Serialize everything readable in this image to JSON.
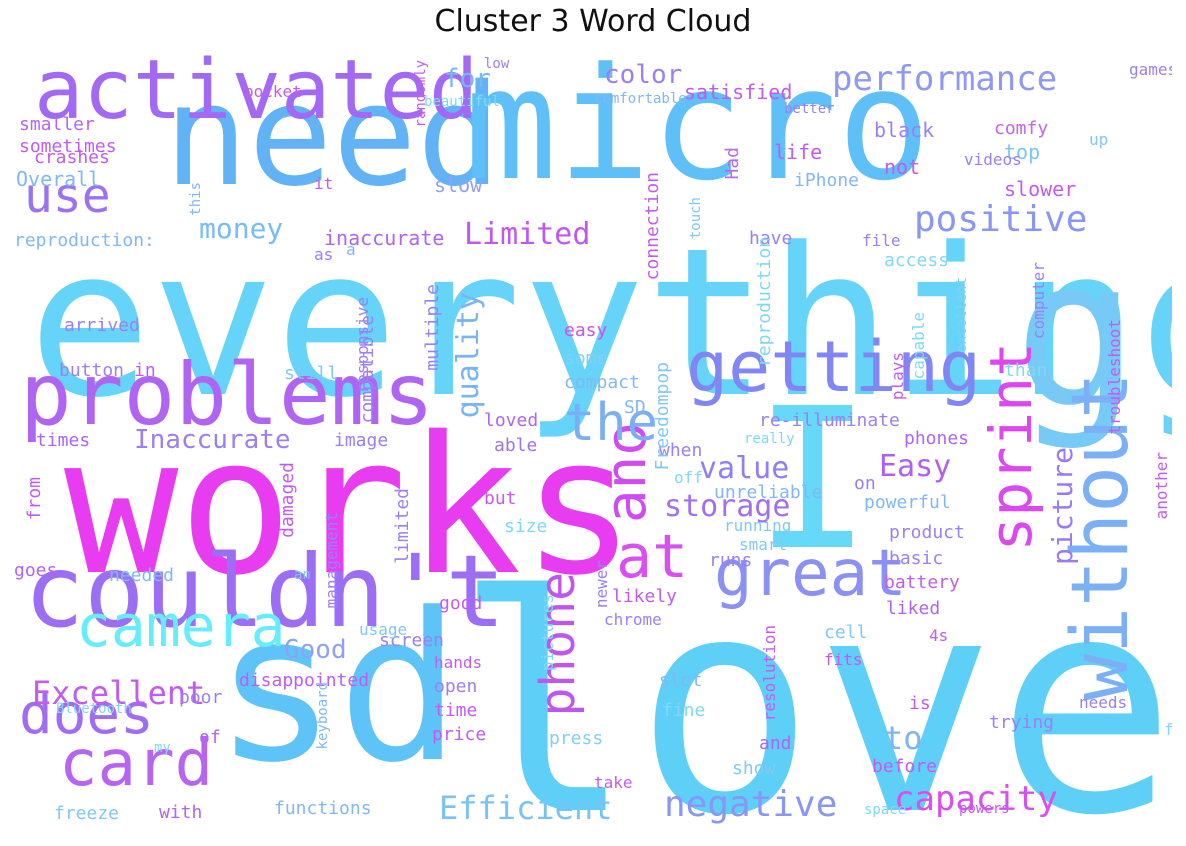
{
  "title": "Cluster 3 Word Cloud",
  "words": [
    {
      "text": "love",
      "color": "#5ed0f8",
      "orientation": "horizontal"
    },
    {
      "text": "works",
      "color": "#e83cf0",
      "orientation": "horizontal"
    },
    {
      "text": "everything",
      "color": "#66d4f8",
      "orientation": "horizontal"
    },
    {
      "text": "need",
      "color": "#62b2f6",
      "orientation": "horizontal"
    },
    {
      "text": "micro",
      "color": "#5ec0f6",
      "orientation": "horizontal"
    },
    {
      "text": "sd",
      "color": "#5ec4f8",
      "orientation": "horizontal"
    },
    {
      "text": "I",
      "color": "#66d8f8",
      "orientation": "horizontal"
    },
    {
      "text": "g",
      "color": "#78caf6",
      "orientation": "horizontal"
    },
    {
      "text": "couldn't",
      "color": "#9b6ef4",
      "orientation": "horizontal"
    },
    {
      "text": "problems",
      "color": "#b064f2",
      "orientation": "horizontal"
    },
    {
      "text": "activated",
      "color": "#a26af4",
      "orientation": "horizontal"
    },
    {
      "text": "without",
      "color": "#7cb0f6",
      "orientation": "vertical"
    },
    {
      "text": "getting",
      "color": "#8086f4",
      "orientation": "horizontal"
    },
    {
      "text": "sprint",
      "color": "#dc48f0",
      "orientation": "vertical"
    },
    {
      "text": "card",
      "color": "#b864f2",
      "orientation": "horizontal"
    },
    {
      "text": "does",
      "color": "#a06cf4",
      "orientation": "horizontal"
    },
    {
      "text": "great",
      "color": "#8a90f4",
      "orientation": "horizontal"
    },
    {
      "text": "at",
      "color": "#d850f0",
      "orientation": "horizontal"
    },
    {
      "text": "ano",
      "color": "#d04cf0",
      "orientation": "vertical"
    },
    {
      "text": "phone",
      "color": "#c056f0",
      "orientation": "vertical"
    },
    {
      "text": "camera",
      "color": "#66ecfa",
      "orientation": "horizontal"
    },
    {
      "text": "the",
      "color": "#7aaef6",
      "orientation": "horizontal"
    },
    {
      "text": "use",
      "color": "#9c72f4",
      "orientation": "horizontal"
    },
    {
      "text": "performance",
      "color": "#9098f4",
      "orientation": "horizontal"
    },
    {
      "text": "positive",
      "color": "#8a96f4",
      "orientation": "horizontal"
    },
    {
      "text": "negative",
      "color": "#8a96f4",
      "orientation": "horizontal"
    },
    {
      "text": "capacity",
      "color": "#d84ef0",
      "orientation": "horizontal"
    },
    {
      "text": "Efficient",
      "color": "#78c2f6",
      "orientation": "horizontal"
    },
    {
      "text": "Excellent",
      "color": "#c25cf0",
      "orientation": "horizontal"
    },
    {
      "text": "storage",
      "color": "#a070f2",
      "orientation": "horizontal"
    },
    {
      "text": "value",
      "color": "#8e80f4",
      "orientation": "horizontal"
    },
    {
      "text": "Easy",
      "color": "#b060f0",
      "orientation": "horizontal"
    },
    {
      "text": "quality",
      "color": "#78b4f6",
      "orientation": "vertical"
    },
    {
      "text": "picture",
      "color": "#9a7af4",
      "orientation": "vertical"
    },
    {
      "text": "Limited",
      "color": "#c058f0",
      "orientation": "horizontal"
    },
    {
      "text": "money",
      "color": "#76bcf6",
      "orientation": "horizontal"
    },
    {
      "text": "Inaccurate",
      "color": "#9a80f4",
      "orientation": "horizontal"
    },
    {
      "text": "Good",
      "color": "#90a0f4",
      "orientation": "horizontal"
    },
    {
      "text": "color",
      "color": "#9a80f4",
      "orientation": "horizontal"
    },
    {
      "text": "for",
      "color": "#78b8f6",
      "orientation": "horizontal"
    },
    {
      "text": "to",
      "color": "#80b4f6",
      "orientation": "horizontal"
    },
    {
      "text": "satisfied",
      "color": "#c05cf0",
      "orientation": "horizontal"
    },
    {
      "text": "inaccurate",
      "color": "#b064f2",
      "orientation": "horizontal"
    },
    {
      "text": "life",
      "color": "#c25cf0",
      "orientation": "horizontal"
    },
    {
      "text": "Had",
      "color": "#b868f0",
      "orientation": "vertical"
    },
    {
      "text": "black",
      "color": "#9a80f4",
      "orientation": "horizontal"
    },
    {
      "text": "comfy",
      "color": "#c860f0",
      "orientation": "horizontal"
    },
    {
      "text": "top",
      "color": "#76c8f6",
      "orientation": "horizontal"
    },
    {
      "text": "not",
      "color": "#c25cf0",
      "orientation": "horizontal"
    },
    {
      "text": "slower",
      "color": "#c25cf0",
      "orientation": "horizontal"
    },
    {
      "text": "slow",
      "color": "#90a0f4",
      "orientation": "horizontal"
    },
    {
      "text": "Overall",
      "color": "#80b8f6",
      "orientation": "horizontal"
    },
    {
      "text": "sometimes",
      "color": "#c25cf0",
      "orientation": "horizontal"
    },
    {
      "text": "smaller",
      "color": "#b864f2",
      "orientation": "horizontal"
    },
    {
      "text": "crashes",
      "color": "#c25cf0",
      "orientation": "horizontal"
    },
    {
      "text": "reproduction:",
      "color": "#80b8f6",
      "orientation": "horizontal"
    },
    {
      "text": "arrived",
      "color": "#9a80f4",
      "orientation": "horizontal"
    },
    {
      "text": "button",
      "color": "#9a80f4",
      "orientation": "horizontal"
    },
    {
      "text": "in",
      "color": "#c25cf0",
      "orientation": "horizontal"
    },
    {
      "text": "times",
      "color": "#b064f2",
      "orientation": "horizontal"
    },
    {
      "text": "still",
      "color": "#80c8f6",
      "orientation": "horizontal"
    },
    {
      "text": "image",
      "color": "#9a80f4",
      "orientation": "horizontal"
    },
    {
      "text": "easy",
      "color": "#d050f0",
      "orientation": "horizontal"
    },
    {
      "text": "some",
      "color": "#80d0f6",
      "orientation": "horizontal"
    },
    {
      "text": "compact",
      "color": "#80b8f6",
      "orientation": "horizontal"
    },
    {
      "text": "SD",
      "color": "#80b8f6",
      "orientation": "horizontal"
    },
    {
      "text": "loved",
      "color": "#b064f2",
      "orientation": "horizontal"
    },
    {
      "text": "able",
      "color": "#a070f2",
      "orientation": "horizontal"
    },
    {
      "text": "re-illuminate",
      "color": "#9a80f4",
      "orientation": "horizontal"
    },
    {
      "text": "really",
      "color": "#80d8f6",
      "orientation": "horizontal"
    },
    {
      "text": "when",
      "color": "#9a80f4",
      "orientation": "horizontal"
    },
    {
      "text": "phones",
      "color": "#b064f2",
      "orientation": "horizontal"
    },
    {
      "text": "off",
      "color": "#80d8f6",
      "orientation": "horizontal"
    },
    {
      "text": "on",
      "color": "#9a80f4",
      "orientation": "horizontal"
    },
    {
      "text": "unreliable",
      "color": "#80b8f6",
      "orientation": "horizontal"
    },
    {
      "text": "powerful",
      "color": "#80b8f6",
      "orientation": "horizontal"
    },
    {
      "text": "product",
      "color": "#9a80f4",
      "orientation": "horizontal"
    },
    {
      "text": "basic",
      "color": "#9a80f4",
      "orientation": "horizontal"
    },
    {
      "text": "battery",
      "color": "#c25cf0",
      "orientation": "horizontal"
    },
    {
      "text": "liked",
      "color": "#b064f2",
      "orientation": "horizontal"
    },
    {
      "text": "4s",
      "color": "#c25cf0",
      "orientation": "horizontal"
    },
    {
      "text": "cell",
      "color": "#80c8f6",
      "orientation": "horizontal"
    },
    {
      "text": "fits",
      "color": "#d050f0",
      "orientation": "horizontal"
    },
    {
      "text": "slot",
      "color": "#80b8f6",
      "orientation": "horizontal"
    },
    {
      "text": "fine",
      "color": "#80d8f6",
      "orientation": "horizontal"
    },
    {
      "text": "is",
      "color": "#c25cf0",
      "orientation": "horizontal"
    },
    {
      "text": "trying",
      "color": "#9a80f4",
      "orientation": "horizontal"
    },
    {
      "text": "needs",
      "color": "#9a80f4",
      "orientation": "horizontal"
    },
    {
      "text": "and",
      "color": "#b064f2",
      "orientation": "horizontal"
    },
    {
      "text": "show",
      "color": "#80c8f6",
      "orientation": "horizontal"
    },
    {
      "text": "before",
      "color": "#c25cf0",
      "orientation": "horizontal"
    },
    {
      "text": "space",
      "color": "#80d8f6",
      "orientation": "horizontal"
    },
    {
      "text": "powers",
      "color": "#c25cf0",
      "orientation": "horizontal"
    },
    {
      "text": "take",
      "color": "#c25cf0",
      "orientation": "horizontal"
    },
    {
      "text": "functions",
      "color": "#80b8f6",
      "orientation": "horizontal"
    },
    {
      "text": "with",
      "color": "#b064f2",
      "orientation": "horizontal"
    },
    {
      "text": "freeze",
      "color": "#80c8f6",
      "orientation": "horizontal"
    },
    {
      "text": "of",
      "color": "#b064f2",
      "orientation": "horizontal"
    },
    {
      "text": "poor",
      "color": "#9a80f4",
      "orientation": "horizontal"
    },
    {
      "text": "Bluetooth",
      "color": "#80d8f6",
      "orientation": "horizontal"
    },
    {
      "text": "my",
      "color": "#80d8f6",
      "orientation": "horizontal"
    },
    {
      "text": "disappointed",
      "color": "#c25cf0",
      "orientation": "horizontal"
    },
    {
      "text": "hands",
      "color": "#c25cf0",
      "orientation": "horizontal"
    },
    {
      "text": "open",
      "color": "#9a80f4",
      "orientation": "horizontal"
    },
    {
      "text": "time",
      "color": "#c25cf0",
      "orientation": "horizontal"
    },
    {
      "text": "price",
      "color": "#c25cf0",
      "orientation": "horizontal"
    },
    {
      "text": "press",
      "color": "#80d0f6",
      "orientation": "horizontal"
    },
    {
      "text": "good",
      "color": "#c25cf0",
      "orientation": "horizontal"
    },
    {
      "text": "likely",
      "color": "#c25cf0",
      "orientation": "horizontal"
    },
    {
      "text": "chrome",
      "color": "#9a80f4",
      "orientation": "horizontal"
    },
    {
      "text": "runs",
      "color": "#9a80f4",
      "orientation": "horizontal"
    },
    {
      "text": "smart",
      "color": "#80c8f6",
      "orientation": "horizontal"
    },
    {
      "text": "running",
      "color": "#80c8f6",
      "orientation": "horizontal"
    },
    {
      "text": "size",
      "color": "#80d8f6",
      "orientation": "horizontal"
    },
    {
      "text": "but",
      "color": "#c25cf0",
      "orientation": "horizontal"
    },
    {
      "text": "screen",
      "color": "#9a80f4",
      "orientation": "horizontal"
    },
    {
      "text": "usage",
      "color": "#80c8f6",
      "orientation": "horizontal"
    },
    {
      "text": "an",
      "color": "#80c8f6",
      "orientation": "horizontal"
    },
    {
      "text": "needed",
      "color": "#80b8f6",
      "orientation": "horizontal"
    },
    {
      "text": "goes",
      "color": "#b064f2",
      "orientation": "horizontal"
    },
    {
      "text": "from",
      "color": "#c25cf0",
      "orientation": "vertical"
    },
    {
      "text": "damaged",
      "color": "#c25cf0",
      "orientation": "vertical"
    },
    {
      "text": "management",
      "color": "#9a80f4",
      "orientation": "vertical"
    },
    {
      "text": "limited",
      "color": "#9a80f4",
      "orientation": "vertical"
    },
    {
      "text": "keyboard",
      "color": "#80b8f6",
      "orientation": "vertical"
    },
    {
      "text": "pictures",
      "color": "#80d8f6",
      "orientation": "vertical"
    },
    {
      "text": "newer",
      "color": "#9a80f4",
      "orientation": "vertical"
    },
    {
      "text": "resolution",
      "color": "#c25cf0",
      "orientation": "vertical"
    },
    {
      "text": "multiple",
      "color": "#9a80f4",
      "orientation": "vertical"
    },
    {
      "text": "compatible",
      "color": "#9a80f4",
      "orientation": "vertical"
    },
    {
      "text": "a",
      "color": "#80b8f6",
      "orientation": "horizontal"
    },
    {
      "text": "as",
      "color": "#9a80f4",
      "orientation": "horizontal"
    },
    {
      "text": "responsive",
      "color": "#9a80f4",
      "orientation": "vertical"
    },
    {
      "text": "connection",
      "color": "#c25cf0",
      "orientation": "vertical"
    },
    {
      "text": "Freedompop",
      "color": "#80c8f6",
      "orientation": "vertical"
    },
    {
      "text": "touch",
      "color": "#80c8f6",
      "orientation": "vertical"
    },
    {
      "text": "have",
      "color": "#9a80f4",
      "orientation": "horizontal"
    },
    {
      "text": "reproduction",
      "color": "#80d8f6",
      "orientation": "vertical"
    },
    {
      "text": "iPhone",
      "color": "#80b8f6",
      "orientation": "horizontal"
    },
    {
      "text": "file",
      "color": "#9a80f4",
      "orientation": "horizontal"
    },
    {
      "text": "access",
      "color": "#80d8f6",
      "orientation": "horizontal"
    },
    {
      "text": "plays",
      "color": "#c25cf0",
      "orientation": "vertical"
    },
    {
      "text": "capable",
      "color": "#80d8f6",
      "orientation": "vertical"
    },
    {
      "text": "excellent",
      "color": "#80d0f6",
      "orientation": "vertical"
    },
    {
      "text": "computer",
      "color": "#9a80f4",
      "orientation": "vertical"
    },
    {
      "text": "than",
      "color": "#80d8f6",
      "orientation": "horizontal"
    },
    {
      "text": "troubleshoot",
      "color": "#c25cf0",
      "orientation": "vertical"
    },
    {
      "text": "another",
      "color": "#c25cf0",
      "orientation": "vertical"
    },
    {
      "text": "fit",
      "color": "#80d8f6",
      "orientation": "horizontal"
    },
    {
      "text": "up",
      "color": "#80c8f6",
      "orientation": "horizontal"
    },
    {
      "text": "games",
      "color": "#9a80f4",
      "orientation": "horizontal"
    },
    {
      "text": "videos",
      "color": "#9a80f4",
      "orientation": "horizontal"
    },
    {
      "text": "better",
      "color": "#9a80f4",
      "orientation": "horizontal"
    },
    {
      "text": "comfortable",
      "color": "#80b8f6",
      "orientation": "horizontal"
    },
    {
      "text": "beautiful",
      "color": "#80d8f6",
      "orientation": "horizontal"
    },
    {
      "text": "low",
      "color": "#9a80f4",
      "orientation": "horizontal"
    },
    {
      "text": "randomly",
      "color": "#c25cf0",
      "orientation": "vertical"
    },
    {
      "text": "pocket",
      "color": "#c25cf0",
      "orientation": "horizontal"
    },
    {
      "text": "it",
      "color": "#c25cf0",
      "orientation": "horizontal"
    },
    {
      "text": "this",
      "color": "#80b8f6",
      "orientation": "vertical"
    }
  ]
}
